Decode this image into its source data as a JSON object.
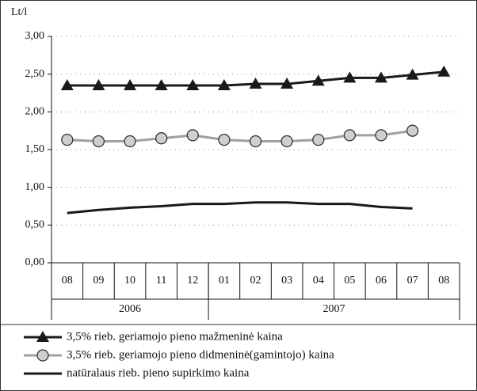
{
  "chart_data": {
    "type": "line",
    "y_axis_label": "Lt/l",
    "categories": [
      "08",
      "09",
      "10",
      "11",
      "12",
      "01",
      "02",
      "03",
      "04",
      "05",
      "06",
      "07",
      "08"
    ],
    "x_groups": [
      {
        "label": "2006",
        "count": 5
      },
      {
        "label": "2007",
        "count": 8
      }
    ],
    "ylim": [
      0,
      3
    ],
    "yticks": [
      {
        "value": 0,
        "label": "0,00"
      },
      {
        "value": 0.5,
        "label": "0,50"
      },
      {
        "value": 1,
        "label": "1,00"
      },
      {
        "value": 1.5,
        "label": "1,50"
      },
      {
        "value": 2,
        "label": "2,00"
      },
      {
        "value": 2.5,
        "label": "2,50"
      },
      {
        "value": 3,
        "label": "3,00"
      }
    ],
    "grid": true,
    "series": [
      {
        "name": "3,5% rieb. geriamojo pieno mažmeninė kaina",
        "color": "#1a1a1a",
        "marker": "triangle",
        "values": [
          2.35,
          2.35,
          2.35,
          2.35,
          2.35,
          2.35,
          2.37,
          2.37,
          2.41,
          2.45,
          2.45,
          2.49,
          2.53
        ]
      },
      {
        "name": "3,5% rieb. geriamojo pieno didmeninė(gamintojo) kaina",
        "color": "#a0a0a0",
        "marker": "circle",
        "values": [
          1.63,
          1.61,
          1.61,
          1.65,
          1.69,
          1.63,
          1.61,
          1.61,
          1.63,
          1.69,
          1.69,
          1.75,
          null
        ]
      },
      {
        "name": "natūralaus rieb. pieno supirkimo kaina",
        "color": "#1a1a1a",
        "marker": "none",
        "values": [
          0.66,
          0.7,
          0.73,
          0.75,
          0.78,
          0.78,
          0.8,
          0.8,
          0.78,
          0.78,
          0.74,
          0.72,
          null
        ]
      }
    ]
  }
}
